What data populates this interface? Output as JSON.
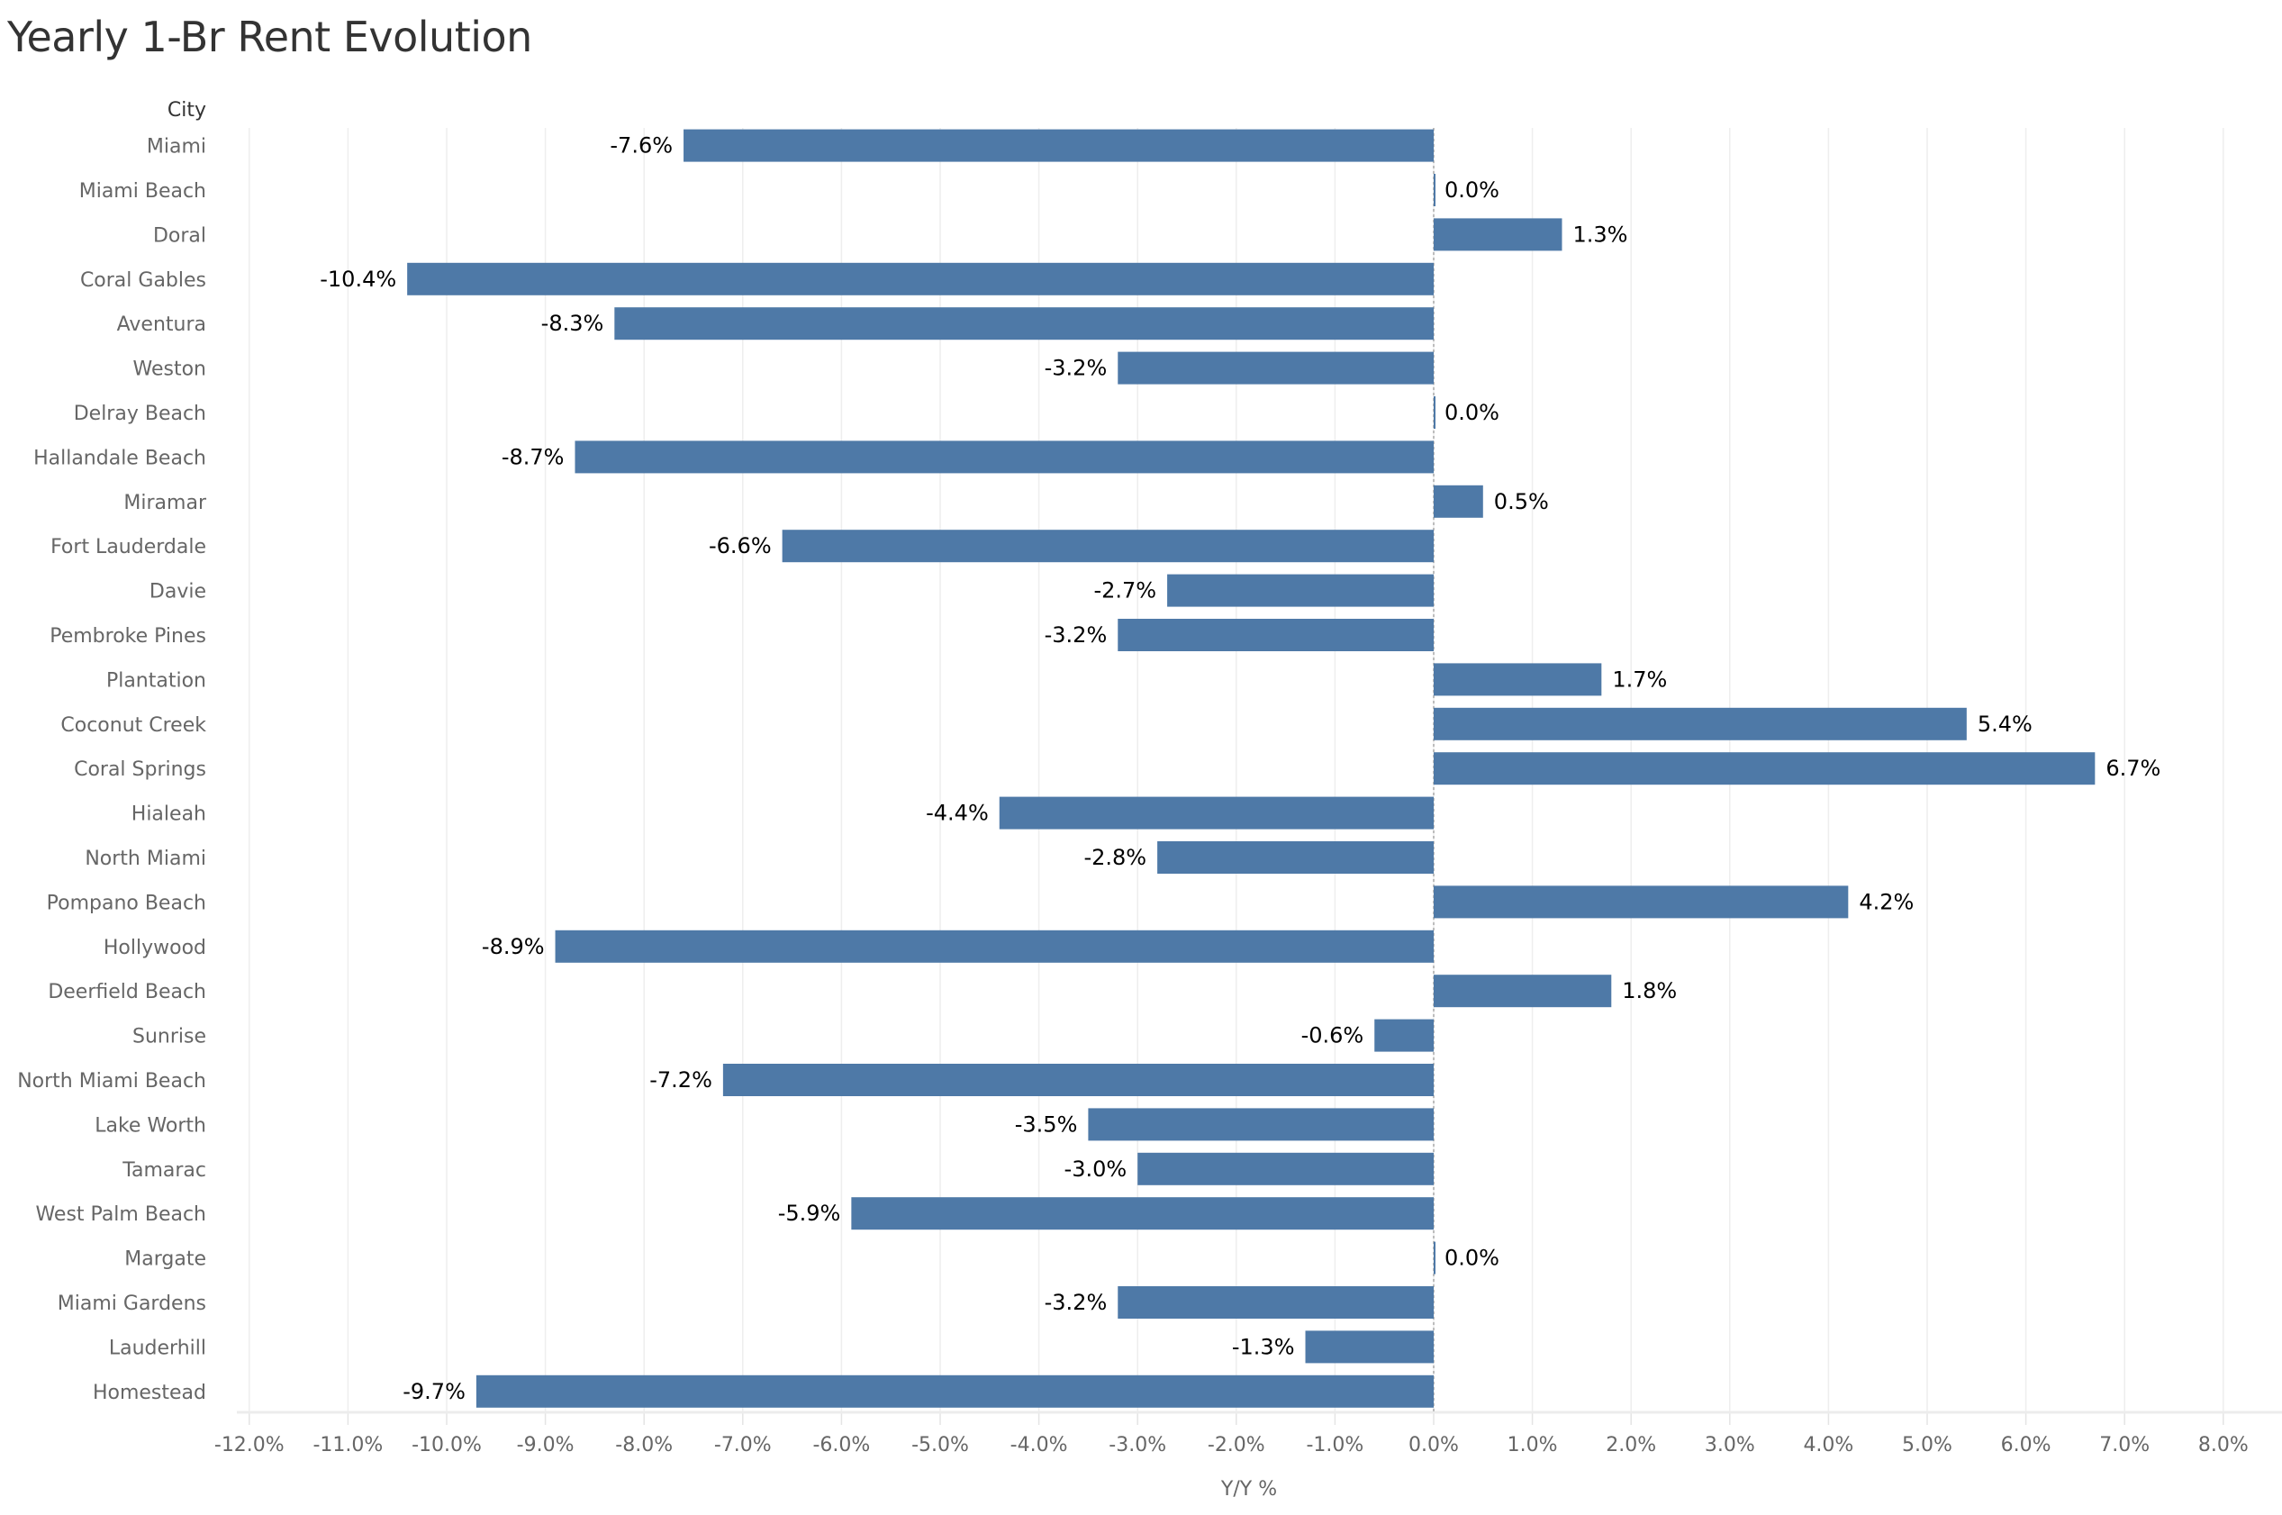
{
  "chart_data": {
    "type": "bar",
    "orientation": "horizontal",
    "title": "Yearly 1-Br Rent Evolution",
    "ylabel": "City",
    "xlabel": "Y/Y %",
    "xlim": [
      -12,
      8
    ],
    "xticks": [
      "-12.0%",
      "-11.0%",
      "-10.0%",
      "-9.0%",
      "-8.0%",
      "-7.0%",
      "-6.0%",
      "-5.0%",
      "-4.0%",
      "-3.0%",
      "-2.0%",
      "-1.0%",
      "0.0%",
      "1.0%",
      "2.0%",
      "3.0%",
      "4.0%",
      "5.0%",
      "6.0%",
      "7.0%",
      "8.0%"
    ],
    "grid": "vertical",
    "bar_color": "#4e79a7",
    "categories": [
      "Miami",
      "Miami Beach",
      "Doral",
      "Coral Gables",
      "Aventura",
      "Weston",
      "Delray Beach",
      "Hallandale Beach",
      "Miramar",
      "Fort Lauderdale",
      "Davie",
      "Pembroke Pines",
      "Plantation",
      "Coconut Creek",
      "Coral Springs",
      "Hialeah",
      "North Miami",
      "Pompano Beach",
      "Hollywood",
      "Deerfield Beach",
      "Sunrise",
      "North Miami Beach",
      "Lake Worth",
      "Tamarac",
      "West Palm Beach",
      "Margate",
      "Miami Gardens",
      "Lauderhill",
      "Homestead"
    ],
    "values": [
      -7.6,
      0.0,
      1.3,
      -10.4,
      -8.3,
      -3.2,
      0.0,
      -8.7,
      0.5,
      -6.6,
      -2.7,
      -3.2,
      1.7,
      5.4,
      6.7,
      -4.4,
      -2.8,
      4.2,
      -8.9,
      1.8,
      -0.6,
      -7.2,
      -3.5,
      -3.0,
      -5.9,
      0.0,
      -3.2,
      -1.3,
      -9.7
    ],
    "data_labels": [
      "-7.6%",
      "0.0%",
      "1.3%",
      "-10.4%",
      "-8.3%",
      "-3.2%",
      "0.0%",
      "-8.7%",
      "0.5%",
      "-6.6%",
      "-2.7%",
      "-3.2%",
      "1.7%",
      "5.4%",
      "6.7%",
      "-4.4%",
      "-2.8%",
      "4.2%",
      "-8.9%",
      "1.8%",
      "-0.6%",
      "-7.2%",
      "-3.5%",
      "-3.0%",
      "-5.9%",
      "0.0%",
      "-3.2%",
      "-1.3%",
      "-9.7%"
    ]
  }
}
